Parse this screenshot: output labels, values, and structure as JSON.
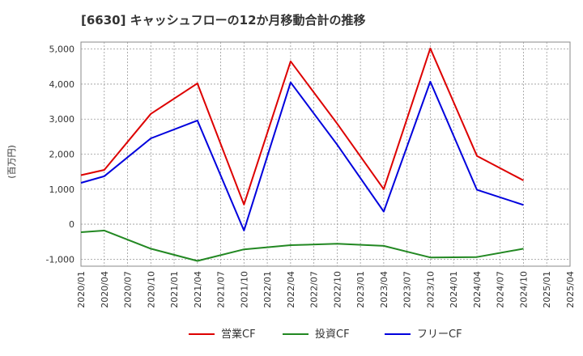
{
  "chart_data": {
    "type": "line",
    "title": "[6630]  キャッシュフローの12か月移動合計の推移",
    "ylabel": "(百万円)",
    "xlabel": "",
    "ylim": [
      -1200,
      5200
    ],
    "yticks": [
      -1000,
      0,
      1000,
      2000,
      3000,
      4000,
      5000
    ],
    "ytick_labels": [
      "-1,000",
      "0",
      "1,000",
      "2,000",
      "3,000",
      "4,000",
      "5,000"
    ],
    "x_ticks": [
      "2020/01",
      "2020/04",
      "2020/07",
      "2020/10",
      "2021/01",
      "2021/04",
      "2021/07",
      "2021/10",
      "2022/01",
      "2022/04",
      "2022/07",
      "2022/10",
      "2023/01",
      "2023/04",
      "2023/07",
      "2023/10",
      "2024/01",
      "2024/04",
      "2024/07",
      "2024/10",
      "2025/01",
      "2025/04"
    ],
    "grid": true,
    "legend_position": "bottom",
    "series": [
      {
        "name": "営業CF",
        "color": "#dd0000",
        "points": [
          {
            "x": "2020/01",
            "y": 1400
          },
          {
            "x": "2020/04",
            "y": 1550
          },
          {
            "x": "2020/10",
            "y": 3150
          },
          {
            "x": "2021/04",
            "y": 4020
          },
          {
            "x": "2021/10",
            "y": 560
          },
          {
            "x": "2022/04",
            "y": 4650
          },
          {
            "x": "2022/10",
            "y": 2870
          },
          {
            "x": "2023/04",
            "y": 1000
          },
          {
            "x": "2023/10",
            "y": 5020
          },
          {
            "x": "2024/04",
            "y": 1950
          },
          {
            "x": "2024/10",
            "y": 1250
          }
        ]
      },
      {
        "name": "投資CF",
        "color": "#228822",
        "points": [
          {
            "x": "2020/01",
            "y": -230
          },
          {
            "x": "2020/04",
            "y": -180
          },
          {
            "x": "2020/10",
            "y": -700
          },
          {
            "x": "2021/04",
            "y": -1050
          },
          {
            "x": "2021/10",
            "y": -720
          },
          {
            "x": "2022/04",
            "y": -600
          },
          {
            "x": "2022/10",
            "y": -560
          },
          {
            "x": "2023/04",
            "y": -620
          },
          {
            "x": "2023/10",
            "y": -950
          },
          {
            "x": "2024/04",
            "y": -940
          },
          {
            "x": "2024/10",
            "y": -700
          }
        ]
      },
      {
        "name": "フリーCF",
        "color": "#0000dd",
        "points": [
          {
            "x": "2020/01",
            "y": 1180
          },
          {
            "x": "2020/04",
            "y": 1370
          },
          {
            "x": "2020/10",
            "y": 2450
          },
          {
            "x": "2021/04",
            "y": 2960
          },
          {
            "x": "2021/10",
            "y": -180
          },
          {
            "x": "2022/04",
            "y": 4050
          },
          {
            "x": "2022/10",
            "y": 2270
          },
          {
            "x": "2023/04",
            "y": 360
          },
          {
            "x": "2023/10",
            "y": 4070
          },
          {
            "x": "2024/04",
            "y": 980
          },
          {
            "x": "2024/10",
            "y": 550
          }
        ]
      }
    ]
  }
}
